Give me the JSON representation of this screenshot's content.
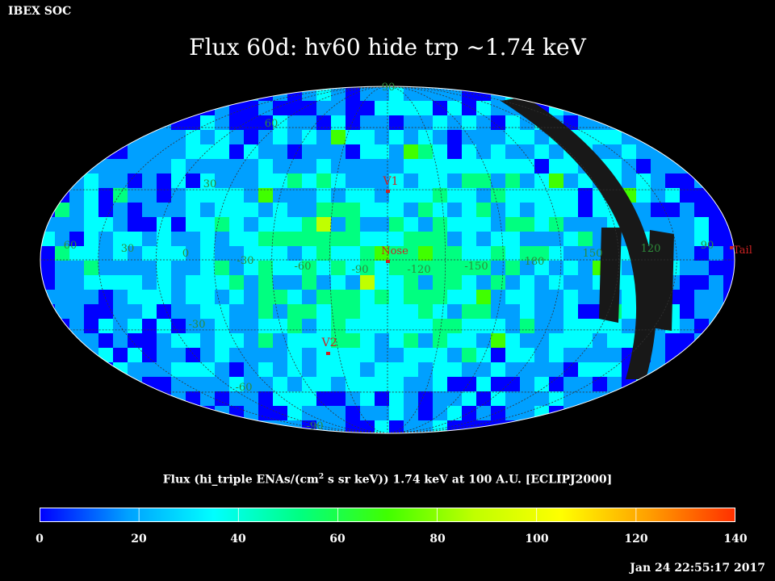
{
  "header": {
    "org": "IBEX SOC",
    "title": "Flux   60d: hv60 hide trp ~1.74 keV"
  },
  "map": {
    "projection": "mollweide",
    "graticule": {
      "lat_step_deg": 30,
      "lon_step_deg": 30
    },
    "lat_labels": [
      "90",
      "60",
      "30",
      "0",
      "-30",
      "-60",
      "-90"
    ],
    "lon_labels": [
      "60",
      "30",
      "0",
      "-30",
      "-60",
      "-90",
      "-120",
      "-150",
      "180",
      "150",
      "120",
      "90"
    ],
    "markers": [
      {
        "name": "V1",
        "color": "#cc2222"
      },
      {
        "name": "Nose",
        "color": "#cc2222"
      },
      {
        "name": "V2",
        "color": "#cc2222"
      },
      {
        "name": "Tail",
        "color": "#cc2222"
      }
    ],
    "graticule_label_color": "#2e8b3a"
  },
  "colorbar": {
    "title_prefix": "Flux (hi_triple ENAs/(cm",
    "title_sup": "2",
    "title_suffix": " s sr keV))  1.74 keV at 100 A.U. [ECLIPJ2000]",
    "min": 0,
    "max": 140,
    "ticks": [
      "0",
      "20",
      "40",
      "60",
      "80",
      "100",
      "120",
      "140"
    ],
    "colors": [
      "#0000ff",
      "#00a0ff",
      "#00ffff",
      "#00ff80",
      "#40ff00",
      "#c0ff00",
      "#ffff00",
      "#ffa000",
      "#ff3000"
    ]
  },
  "footer": {
    "timestamp": "Jan 24 22:55:17 2017"
  }
}
